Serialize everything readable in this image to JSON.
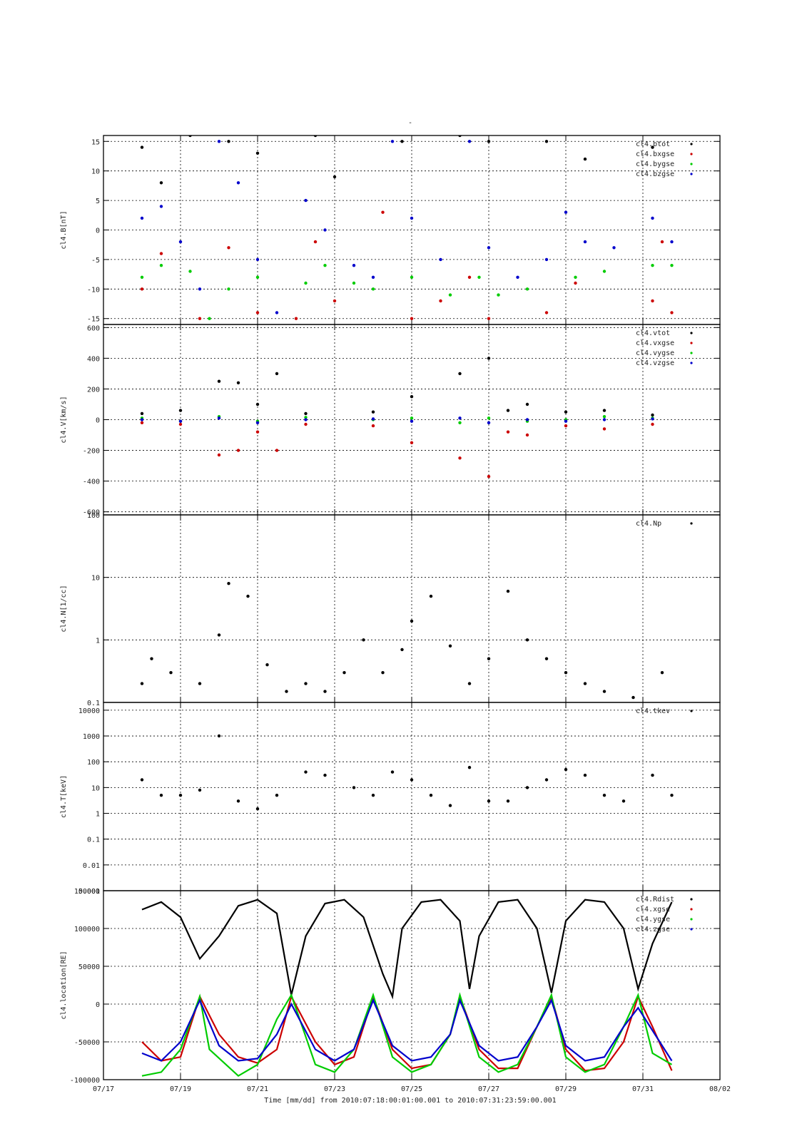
{
  "figure": {
    "title": "-",
    "xlabel": "Time [mm/dd]  from 2010:07:18:00:01:00.001  to  2010:07:31:23:59:00.001"
  },
  "colors": {
    "black": "#000000",
    "red": "#cc0000",
    "green": "#00cc00",
    "blue": "#0000cc"
  },
  "chart_data": [
    {
      "type": "scatter",
      "ylabel": "cl4.B[nT]",
      "yscale": "linear",
      "ylim": [
        -16,
        16
      ],
      "yticks": [
        -15,
        -10,
        -5,
        0,
        5,
        10,
        15
      ],
      "ytick_labels": [
        "-15",
        "-10",
        "-5",
        "0",
        "5",
        "10",
        "15"
      ],
      "xlim": [
        "07/17",
        "08/02"
      ],
      "xticks": [
        "07/17",
        "07/19",
        "07/21",
        "07/23",
        "07/25",
        "07/27",
        "07/29",
        "07/31",
        "08/02"
      ],
      "grid": true,
      "legend_position": "top-right",
      "series": [
        {
          "name": "cl4.btot",
          "color": "#000000",
          "x": [
            "07/18",
            "07/18 12:00",
            "07/19 06:00",
            "07/20 06:00",
            "07/21",
            "07/22 12:00",
            "07/23",
            "07/24 18:00",
            "07/26 06:00",
            "07/27",
            "07/28 12:00",
            "07/29 12:00",
            "07/31 06:00"
          ],
          "y": [
            14,
            8,
            16,
            15,
            13,
            16,
            9,
            15,
            16,
            15,
            15,
            12,
            14
          ]
        },
        {
          "name": "cl4.bxgse",
          "color": "#cc0000",
          "x": [
            "07/18",
            "07/18 12:00",
            "07/19 12:00",
            "07/20 06:00",
            "07/21",
            "07/22",
            "07/22 12:00",
            "07/23",
            "07/24 06:00",
            "07/25",
            "07/25 18:00",
            "07/26 12:00",
            "07/27",
            "07/28 12:00",
            "07/29 06:00",
            "07/31 06:00",
            "07/31 12:00",
            "07/31 18:00"
          ],
          "y": [
            -10,
            -4,
            -15,
            -3,
            -14,
            -15,
            -2,
            -12,
            3,
            -15,
            -12,
            -8,
            -15,
            -14,
            -9,
            -12,
            -2,
            -14
          ]
        },
        {
          "name": "cl4.bygse",
          "color": "#00cc00",
          "x": [
            "07/18",
            "07/18 12:00",
            "07/19 06:00",
            "07/19 18:00",
            "07/20 06:00",
            "07/21",
            "07/22 06:00",
            "07/22 18:00",
            "07/23 12:00",
            "07/24",
            "07/25",
            "07/26",
            "07/26 18:00",
            "07/27 06:00",
            "07/28",
            "07/29 06:00",
            "07/30",
            "07/31 06:00",
            "07/31 18:00"
          ],
          "y": [
            -8,
            -6,
            -7,
            -15,
            -10,
            -8,
            -9,
            -6,
            -9,
            -10,
            -8,
            -11,
            -8,
            -11,
            -10,
            -8,
            -7,
            -6,
            -6
          ]
        },
        {
          "name": "cl4.bzgse",
          "color": "#0000cc",
          "x": [
            "07/18",
            "07/18 12:00",
            "07/19",
            "07/19 12:00",
            "07/20",
            "07/20 12:00",
            "07/21",
            "07/21 12:00",
            "07/22 06:00",
            "07/22 18:00",
            "07/23 12:00",
            "07/24",
            "07/24 12:00",
            "07/25",
            "07/25 18:00",
            "07/26 12:00",
            "07/27",
            "07/27 18:00",
            "07/28 12:00",
            "07/29",
            "07/29 12:00",
            "07/30 06:00",
            "07/31 06:00",
            "07/31 18:00"
          ],
          "y": [
            2,
            4,
            -2,
            -10,
            15,
            8,
            -5,
            -14,
            5,
            0,
            -6,
            -8,
            15,
            2,
            -5,
            15,
            -3,
            -8,
            -5,
            3,
            -2,
            -3,
            2,
            -2
          ]
        }
      ]
    },
    {
      "type": "scatter",
      "ylabel": "cl4.V[km/s]",
      "yscale": "linear",
      "ylim": [
        -620,
        620
      ],
      "yticks": [
        -600,
        -400,
        -200,
        0,
        200,
        400,
        600
      ],
      "ytick_labels": [
        "-600",
        "-400",
        "-200",
        "0",
        "200",
        "400",
        "600"
      ],
      "xlim": [
        "07/17",
        "08/02"
      ],
      "xticks": [
        "07/17",
        "07/19",
        "07/21",
        "07/23",
        "07/25",
        "07/27",
        "07/29",
        "07/31",
        "08/02"
      ],
      "grid": true,
      "legend_position": "top-right",
      "series": [
        {
          "name": "cl4.vtot",
          "color": "#000000",
          "x": [
            "07/18",
            "07/19",
            "07/20",
            "07/20 12:00",
            "07/21",
            "07/21 12:00",
            "07/22 06:00",
            "07/24",
            "07/25",
            "07/26 06:00",
            "07/27",
            "07/27 12:00",
            "07/28",
            "07/29",
            "07/30",
            "07/31 06:00"
          ],
          "y": [
            40,
            60,
            250,
            240,
            100,
            300,
            40,
            50,
            150,
            300,
            400,
            60,
            100,
            50,
            60,
            30
          ]
        },
        {
          "name": "cl4.vxgse",
          "color": "#cc0000",
          "x": [
            "07/18",
            "07/19",
            "07/20",
            "07/20 12:00",
            "07/21",
            "07/21 12:00",
            "07/22 06:00",
            "07/24",
            "07/25",
            "07/26 06:00",
            "07/27",
            "07/27 12:00",
            "07/28",
            "07/29",
            "07/30",
            "07/31 06:00"
          ],
          "y": [
            -20,
            -30,
            -230,
            -200,
            -80,
            -200,
            -30,
            -40,
            -150,
            -250,
            -370,
            -80,
            -100,
            -40,
            -60,
            -30
          ]
        },
        {
          "name": "cl4.vygse",
          "color": "#00cc00",
          "x": [
            "07/18",
            "07/19",
            "07/20",
            "07/21",
            "07/22 06:00",
            "07/24",
            "07/25",
            "07/26 06:00",
            "07/27",
            "07/28",
            "07/29",
            "07/30",
            "07/31 06:00"
          ],
          "y": [
            10,
            -10,
            20,
            -10,
            15,
            0,
            10,
            -20,
            10,
            -10,
            0,
            20,
            10
          ]
        },
        {
          "name": "cl4.vzgse",
          "color": "#0000cc",
          "x": [
            "07/18",
            "07/19",
            "07/20",
            "07/21",
            "07/22 06:00",
            "07/24",
            "07/25",
            "07/26 06:00",
            "07/27",
            "07/28",
            "07/29",
            "07/30",
            "07/31 06:00"
          ],
          "y": [
            0,
            -10,
            10,
            -20,
            0,
            5,
            -10,
            10,
            -20,
            0,
            -10,
            0,
            5
          ]
        }
      ]
    },
    {
      "type": "scatter",
      "ylabel": "cl4.N[1/cc]",
      "yscale": "log",
      "ylim": [
        0.1,
        100
      ],
      "yticks": [
        0.1,
        1,
        10,
        100
      ],
      "ytick_labels": [
        "0.1",
        "1",
        "10",
        "100"
      ],
      "xlim": [
        "07/17",
        "08/02"
      ],
      "xticks": [
        "07/17",
        "07/19",
        "07/21",
        "07/23",
        "07/25",
        "07/27",
        "07/29",
        "07/31",
        "08/02"
      ],
      "grid": true,
      "legend_position": "top-right",
      "series": [
        {
          "name": "cl4.Np",
          "color": "#000000",
          "x": [
            "07/18",
            "07/18 06:00",
            "07/18 18:00",
            "07/19 12:00",
            "07/20",
            "07/20 06:00",
            "07/20 18:00",
            "07/21 06:00",
            "07/21 18:00",
            "07/22 06:00",
            "07/22 18:00",
            "07/23 06:00",
            "07/23 18:00",
            "07/24 06:00",
            "07/24 18:00",
            "07/25",
            "07/25 12:00",
            "07/26",
            "07/26 12:00",
            "07/27",
            "07/27 12:00",
            "07/28",
            "07/28 12:00",
            "07/29",
            "07/29 12:00",
            "07/30",
            "07/30 18:00",
            "07/31 12:00"
          ],
          "y": [
            0.2,
            0.5,
            0.3,
            0.2,
            1.2,
            8,
            5,
            0.4,
            0.15,
            0.2,
            0.15,
            0.3,
            1,
            0.3,
            0.7,
            2,
            5,
            0.8,
            0.2,
            0.5,
            6,
            1,
            0.5,
            0.3,
            0.2,
            0.15,
            0.12,
            0.3
          ]
        }
      ]
    },
    {
      "type": "scatter",
      "ylabel": "cl4.T[keV]",
      "yscale": "log",
      "ylim": [
        0.001,
        20000
      ],
      "yticks": [
        0.001,
        0.01,
        0.1,
        1,
        10,
        100,
        1000,
        10000
      ],
      "ytick_labels": [
        "0.001",
        "0.01",
        "0.1",
        "1",
        "10",
        "100",
        "1000",
        "10000"
      ],
      "xlim": [
        "07/17",
        "08/02"
      ],
      "xticks": [
        "07/17",
        "07/19",
        "07/21",
        "07/23",
        "07/25",
        "07/27",
        "07/29",
        "07/31",
        "08/02"
      ],
      "grid": true,
      "legend_position": "top-right",
      "series": [
        {
          "name": "cl4.tkev",
          "color": "#000000",
          "x": [
            "07/18",
            "07/18 12:00",
            "07/19",
            "07/19 12:00",
            "07/20",
            "07/20 12:00",
            "07/21",
            "07/21 12:00",
            "07/22 06:00",
            "07/22 18:00",
            "07/23 12:00",
            "07/24",
            "07/24 12:00",
            "07/25",
            "07/25 12:00",
            "07/26",
            "07/26 12:00",
            "07/27",
            "07/27 12:00",
            "07/28",
            "07/28 12:00",
            "07/29",
            "07/29 12:00",
            "07/30",
            "07/30 12:00",
            "07/31 06:00",
            "07/31 18:00"
          ],
          "y": [
            20,
            5,
            5,
            8,
            1000,
            3,
            1.5,
            5,
            40,
            30,
            10,
            5,
            40,
            20,
            5,
            2,
            60,
            3,
            3,
            10,
            20,
            50,
            30,
            5,
            3,
            30,
            5
          ]
        }
      ]
    },
    {
      "type": "line",
      "ylabel": "cl4.location[RE]",
      "yscale": "linear",
      "ylim": [
        -100000,
        150000
      ],
      "yticks": [
        -100000,
        -50000,
        0,
        50000,
        100000,
        150000
      ],
      "ytick_labels": [
        "-100000",
        "-50000",
        "0",
        "50000",
        "100000",
        "150000"
      ],
      "xlim": [
        "07/17",
        "08/02"
      ],
      "xticks": [
        "07/17",
        "07/19",
        "07/21",
        "07/23",
        "07/25",
        "07/27",
        "07/29",
        "07/31",
        "08/02"
      ],
      "grid": true,
      "legend_position": "top-right",
      "series": [
        {
          "name": "cl4.Rdist",
          "color": "#000000",
          "x": [
            "07/18",
            "07/18 12:00",
            "07/19",
            "07/19 12:00",
            "07/20",
            "07/20 12:00",
            "07/21",
            "07/21 12:00",
            "07/21 21:00",
            "07/22 06:00",
            "07/22 18:00",
            "07/23 06:00",
            "07/23 18:00",
            "07/24 06:00",
            "07/24 12:00",
            "07/24 18:00",
            "07/25 06:00",
            "07/25 18:00",
            "07/26 06:00",
            "07/26 12:00",
            "07/26 18:00",
            "07/27 06:00",
            "07/27 18:00",
            "07/28 06:00",
            "07/28 15:00",
            "07/29",
            "07/29 12:00",
            "07/30",
            "07/30 12:00",
            "07/30 21:00",
            "07/31 06:00",
            "07/31 18:00"
          ],
          "y": [
            125000,
            135000,
            115000,
            60000,
            90000,
            130000,
            138000,
            120000,
            12000,
            90000,
            133000,
            138000,
            115000,
            40000,
            10000,
            100000,
            135000,
            138000,
            110000,
            20000,
            90000,
            135000,
            138000,
            100000,
            15000,
            110000,
            138000,
            135000,
            100000,
            20000,
            80000,
            135000
          ]
        },
        {
          "name": "cl4.xgse",
          "color": "#cc0000",
          "x": [
            "07/18",
            "07/18 12:00",
            "07/19",
            "07/19 12:00",
            "07/20",
            "07/20 12:00",
            "07/21",
            "07/21 12:00",
            "07/21 21:00",
            "07/22 12:00",
            "07/23",
            "07/23 12:00",
            "07/24",
            "07/24 12:00",
            "07/25",
            "07/25 12:00",
            "07/26",
            "07/26 06:00",
            "07/26 18:00",
            "07/27 06:00",
            "07/27 18:00",
            "07/28 06:00",
            "07/28 15:00",
            "07/29",
            "07/29 12:00",
            "07/30",
            "07/30 12:00",
            "07/30 21:00",
            "07/31 06:00",
            "07/31 18:00"
          ],
          "y": [
            -50000,
            -75000,
            -70000,
            10000,
            -40000,
            -70000,
            -78000,
            -60000,
            10000,
            -50000,
            -80000,
            -70000,
            10000,
            -60000,
            -85000,
            -80000,
            -40000,
            10000,
            -60000,
            -85000,
            -85000,
            -30000,
            10000,
            -60000,
            -88000,
            -85000,
            -50000,
            10000,
            -30000,
            -88000
          ]
        },
        {
          "name": "cl4.ygse",
          "color": "#00cc00",
          "x": [
            "07/18",
            "07/18 12:00",
            "07/19",
            "07/19 12:00",
            "07/19 18:00",
            "07/20 12:00",
            "07/21",
            "07/21 12:00",
            "07/21 21:00",
            "07/22 12:00",
            "07/23",
            "07/23 12:00",
            "07/24",
            "07/24 12:00",
            "07/25",
            "07/25 12:00",
            "07/26",
            "07/26 06:00",
            "07/26 18:00",
            "07/27 06:00",
            "07/27 18:00",
            "07/28 06:00",
            "07/28 15:00",
            "07/29",
            "07/29 12:00",
            "07/30",
            "07/30 12:00",
            "07/30 21:00",
            "07/31 06:00",
            "07/31 18:00"
          ],
          "y": [
            -95000,
            -90000,
            -60000,
            10000,
            -60000,
            -95000,
            -80000,
            -20000,
            12000,
            -80000,
            -90000,
            -60000,
            12000,
            -70000,
            -90000,
            -80000,
            -40000,
            12000,
            -70000,
            -90000,
            -80000,
            -30000,
            12000,
            -70000,
            -90000,
            -80000,
            -30000,
            12000,
            -65000,
            -80000
          ]
        },
        {
          "name": "cl4.zgse",
          "color": "#0000cc",
          "x": [
            "07/18",
            "07/18 12:00",
            "07/19",
            "07/19 12:00",
            "07/20",
            "07/20 12:00",
            "07/21",
            "07/21 12:00",
            "07/21 21:00",
            "07/22 12:00",
            "07/23",
            "07/23 12:00",
            "07/24",
            "07/24 12:00",
            "07/25",
            "07/25 12:00",
            "07/26",
            "07/26 06:00",
            "07/26 18:00",
            "07/27 06:00",
            "07/27 18:00",
            "07/28 06:00",
            "07/28 15:00",
            "07/29",
            "07/29 12:00",
            "07/30",
            "07/30 12:00",
            "07/30 21:00",
            "07/31 06:00",
            "07/31 18:00"
          ],
          "y": [
            -65000,
            -75000,
            -50000,
            5000,
            -55000,
            -75000,
            -72000,
            -40000,
            0,
            -60000,
            -75000,
            -60000,
            5000,
            -55000,
            -75000,
            -70000,
            -40000,
            5000,
            -55000,
            -75000,
            -70000,
            -30000,
            5000,
            -55000,
            -75000,
            -70000,
            -30000,
            -5000,
            -35000,
            -75000
          ]
        }
      ]
    }
  ]
}
